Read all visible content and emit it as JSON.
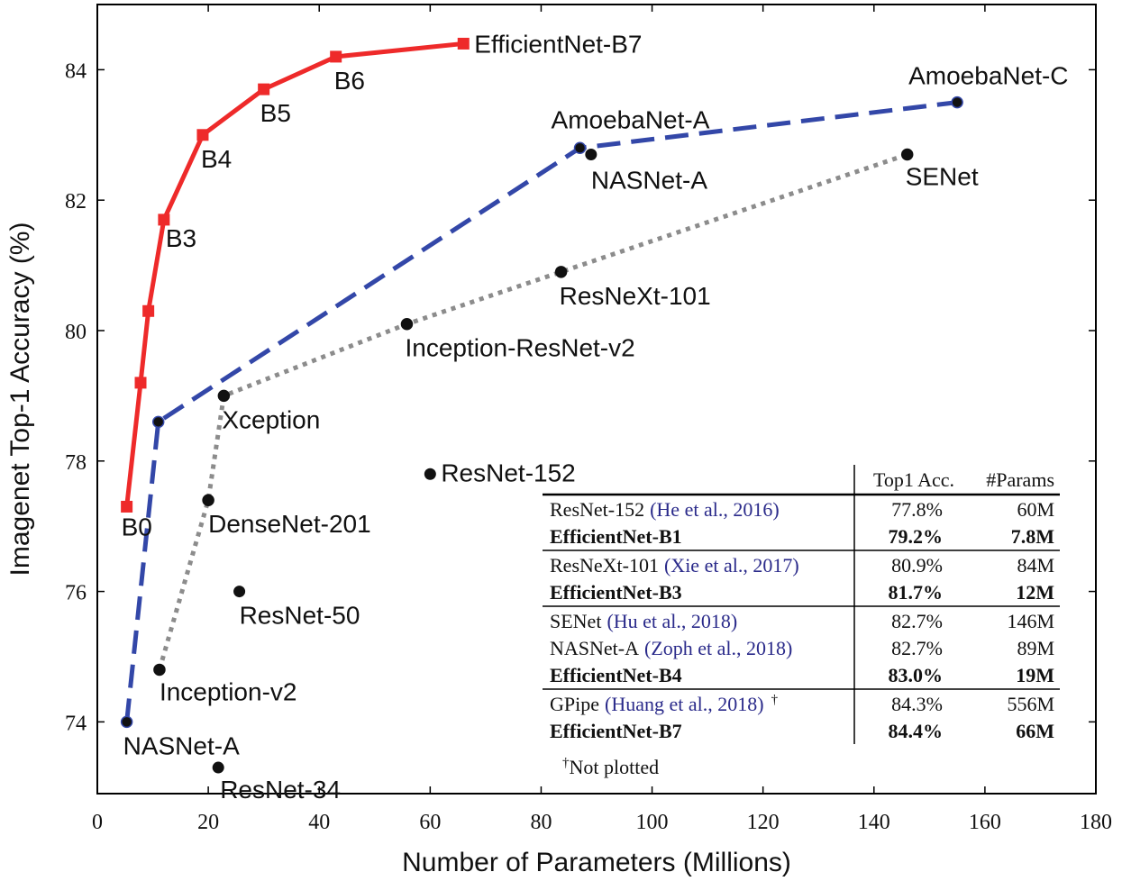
{
  "chart_data": {
    "type": "line",
    "xlabel": "Number of Parameters (Millions)",
    "ylabel": "Imagenet Top-1 Accuracy (%)",
    "xlim": [
      0,
      180
    ],
    "ylim": [
      72.9,
      85
    ],
    "xticks": [
      0,
      20,
      40,
      60,
      80,
      100,
      120,
      140,
      160,
      180
    ],
    "yticks": [
      74,
      76,
      78,
      80,
      82,
      84
    ],
    "grid": false,
    "series": [
      {
        "style": "solid",
        "color": "#ee2a2a",
        "marker": "square",
        "points": [
          {
            "x": 5.3,
            "y": 77.3,
            "label": "B0"
          },
          {
            "x": 7.8,
            "y": 79.2,
            "label": ""
          },
          {
            "x": 9.2,
            "y": 80.3,
            "label": ""
          },
          {
            "x": 12,
            "y": 81.7,
            "label": "B3"
          },
          {
            "x": 19,
            "y": 83.0,
            "label": "B4"
          },
          {
            "x": 30,
            "y": 83.7,
            "label": "B5"
          },
          {
            "x": 43,
            "y": 84.2,
            "label": "B6"
          },
          {
            "x": 66,
            "y": 84.4,
            "label": "EfficientNet-B7"
          }
        ]
      },
      {
        "style": "dashed",
        "color": "#3347a8",
        "marker": "circle",
        "points": [
          {
            "x": 5.3,
            "y": 74.0,
            "label": "NASNet-A"
          },
          {
            "x": 11,
            "y": 78.6,
            "label": ""
          },
          {
            "x": 87,
            "y": 82.8,
            "label": "AmoebaNet-A"
          },
          {
            "x": 155,
            "y": 83.5,
            "label": "AmoebaNet-C"
          }
        ]
      },
      {
        "style": "dotted",
        "color": "#8c8c8c",
        "marker": "circle",
        "points": [
          {
            "x": 11.2,
            "y": 74.8,
            "label": "Inception-v2"
          },
          {
            "x": 20,
            "y": 77.4,
            "label": "DenseNet-201"
          },
          {
            "x": 22.8,
            "y": 79.0,
            "label": "Xception"
          },
          {
            "x": 55.8,
            "y": 80.1,
            "label": "Inception-ResNet-v2"
          },
          {
            "x": 83.6,
            "y": 80.9,
            "label": "ResNeXt-101"
          },
          {
            "x": 146,
            "y": 82.7,
            "label": "SENet"
          }
        ]
      }
    ],
    "scatter_points": [
      {
        "x": 89,
        "y": 82.7,
        "label": "NASNet-A"
      },
      {
        "x": 60,
        "y": 77.8,
        "label": "ResNet-152"
      },
      {
        "x": 25.6,
        "y": 76.0,
        "label": "ResNet-50"
      },
      {
        "x": 21.8,
        "y": 73.3,
        "label": "ResNet-34"
      }
    ],
    "table": {
      "headers": [
        "",
        "Top1 Acc.",
        "#Params"
      ],
      "groups": [
        [
          {
            "model": "ResNet-152",
            "cite": "(He et al., 2016)",
            "acc": "77.8%",
            "params": "60M",
            "bold": false
          },
          {
            "model": "EfficientNet-B1",
            "cite": "",
            "acc": "79.2%",
            "params": "7.8M",
            "bold": true
          }
        ],
        [
          {
            "model": "ResNeXt-101",
            "cite": "(Xie et al., 2017)",
            "acc": "80.9%",
            "params": "84M",
            "bold": false
          },
          {
            "model": "EfficientNet-B3",
            "cite": "",
            "acc": "81.7%",
            "params": "12M",
            "bold": true
          }
        ],
        [
          {
            "model": "SENet",
            "cite": "(Hu et al., 2018)",
            "acc": "82.7%",
            "params": "146M",
            "bold": false
          },
          {
            "model": "NASNet-A",
            "cite": "(Zoph et al., 2018)",
            "acc": "82.7%",
            "params": "89M",
            "bold": false
          },
          {
            "model": "EfficientNet-B4",
            "cite": "",
            "acc": "83.0%",
            "params": "19M",
            "bold": true
          }
        ],
        [
          {
            "model": "GPipe",
            "cite": "(Huang et al., 2018)",
            "sup": "†",
            "acc": "84.3%",
            "params": "556M",
            "bold": false
          },
          {
            "model": "EfficientNet-B7",
            "cite": "",
            "acc": "84.4%",
            "params": "66M",
            "bold": true
          }
        ]
      ],
      "footnote_mark": "†",
      "footnote": "Not plotted"
    }
  }
}
